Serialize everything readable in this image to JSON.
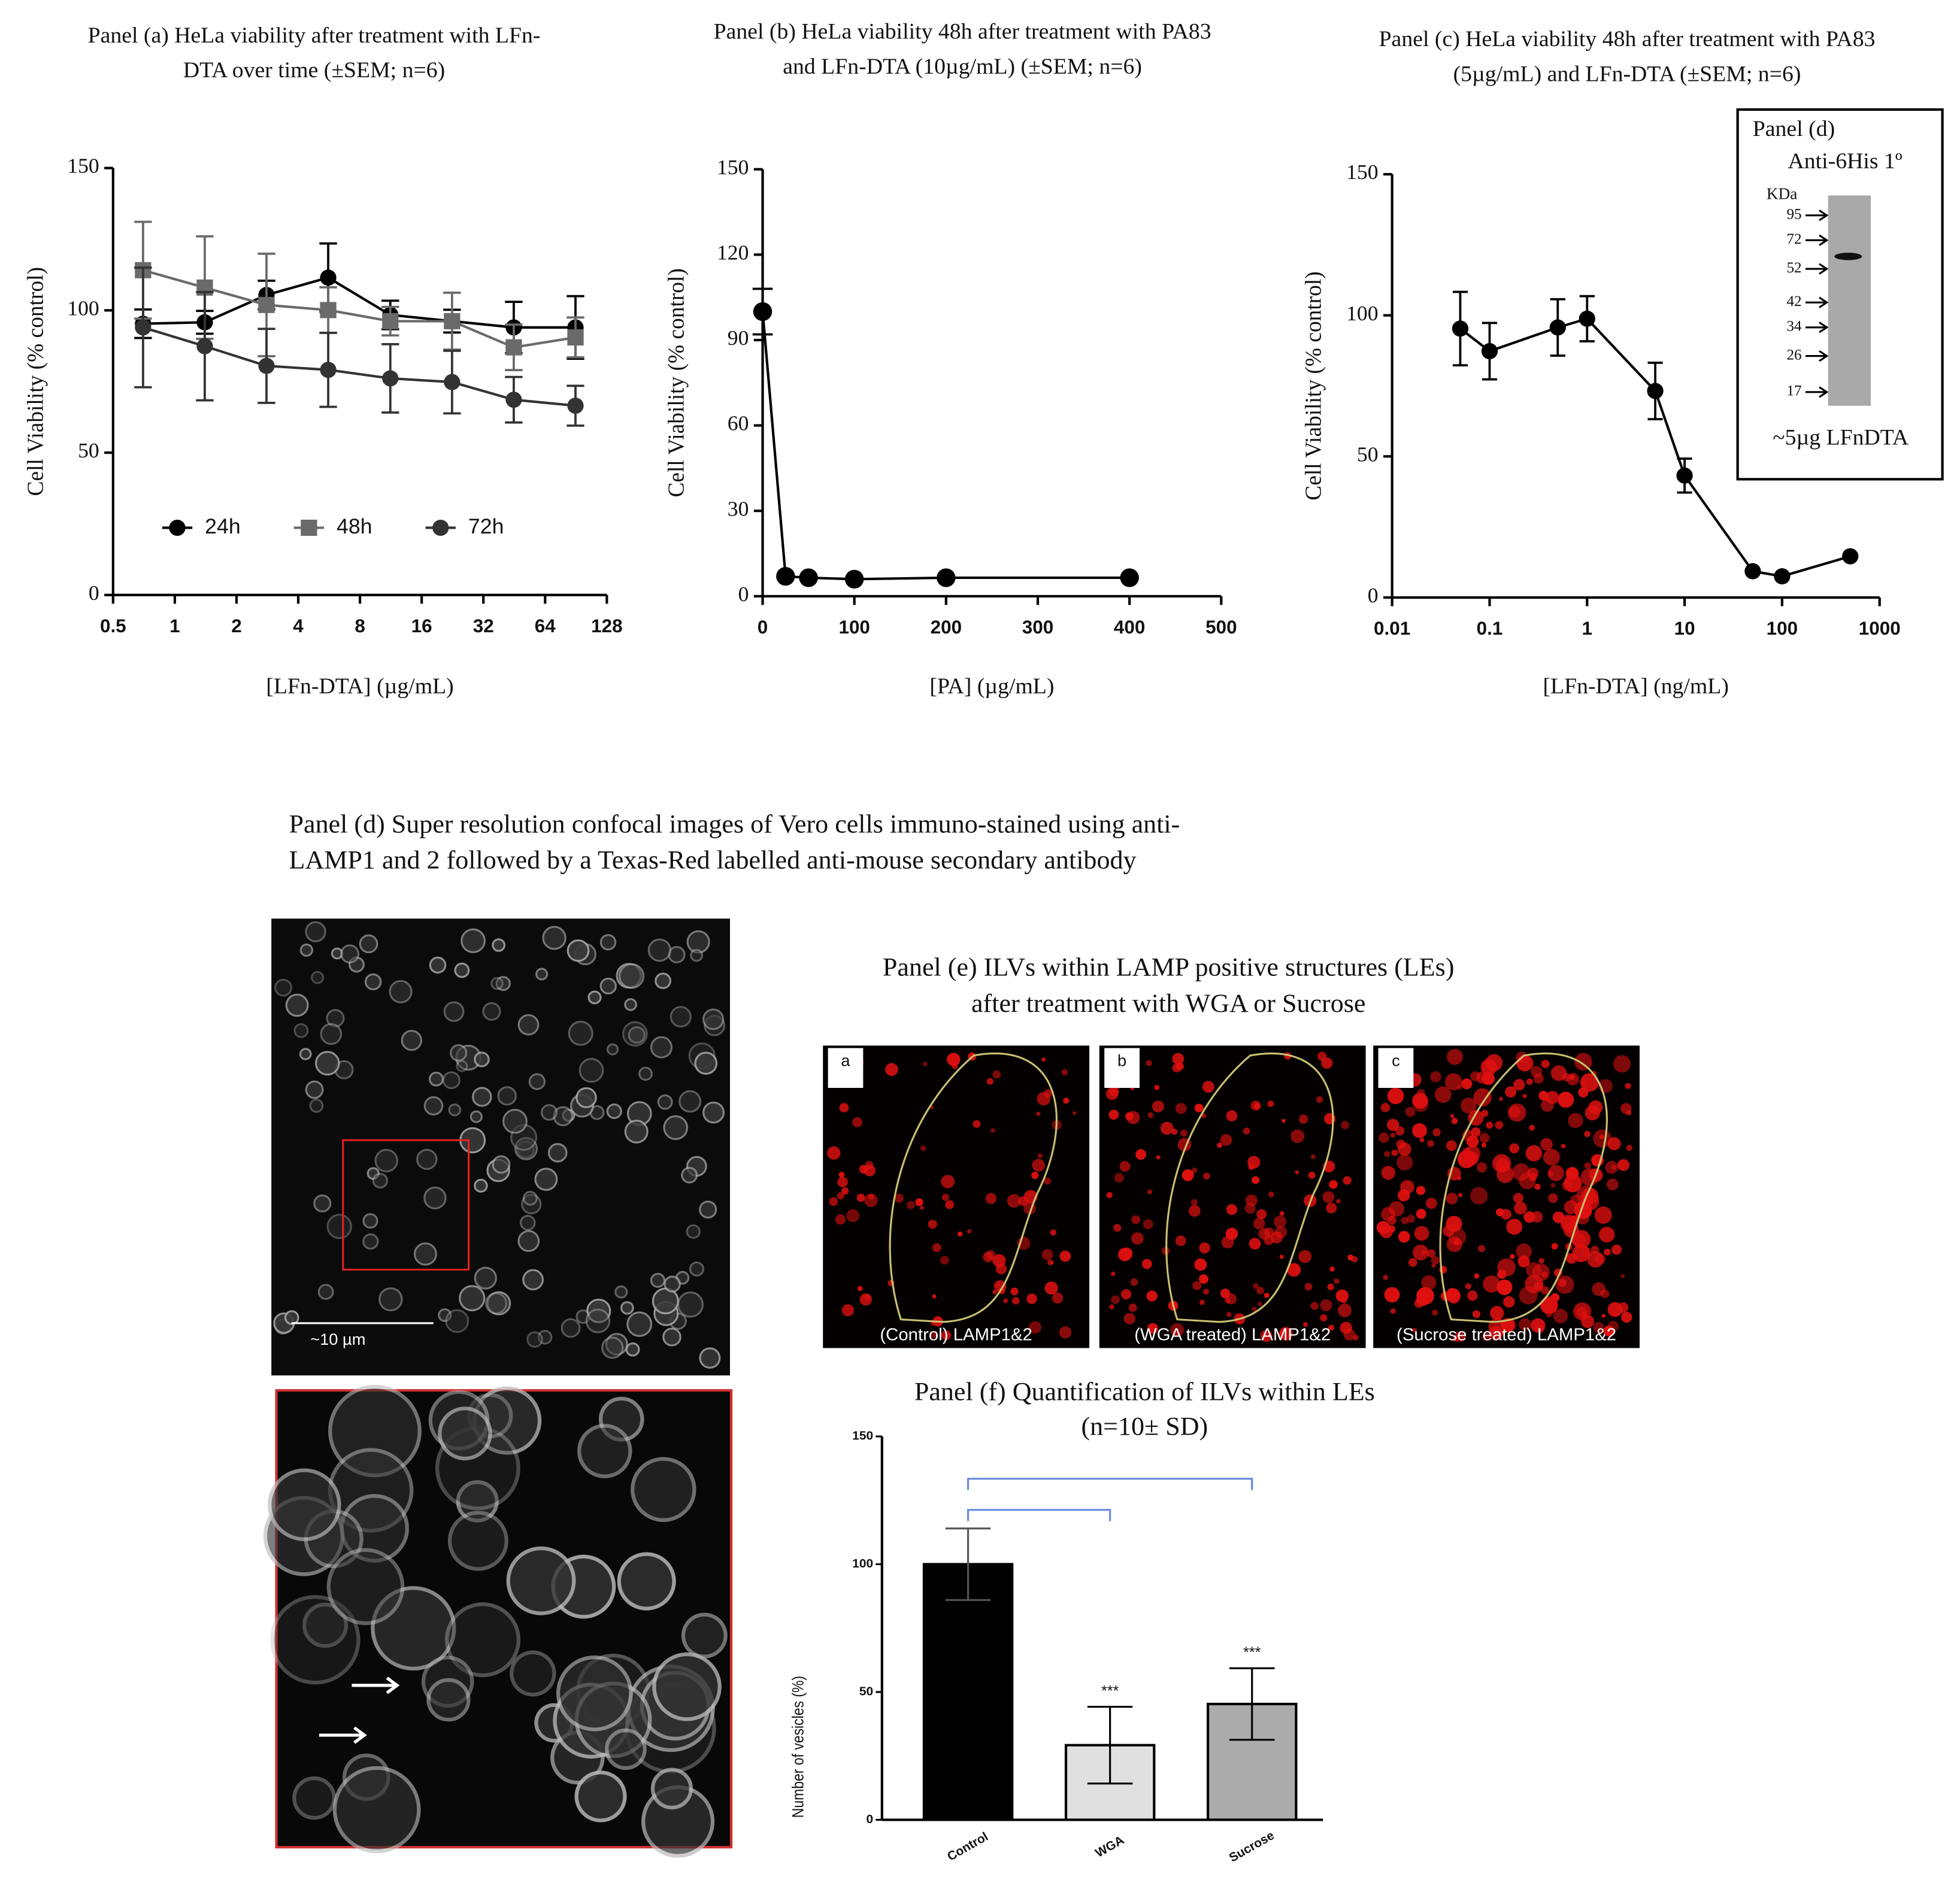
{
  "chart_data": [
    {
      "type": "line",
      "title": [
        "Panel (a) HeLa viability after treatment with LFn-",
        "DTA over time (±SEM; n=6)"
      ],
      "xlabel": "[LFn-DTA] (µg/mL)",
      "ylabel": "Cell Viability  (% control)",
      "x": [
        0.7,
        1.4,
        2.8,
        5.6,
        11.25,
        22.5,
        45,
        90
      ],
      "x_log_base": 2,
      "xlim": [
        0.5,
        128
      ],
      "xticks": [
        0.5,
        1,
        2,
        4,
        8,
        16,
        32,
        64,
        128
      ],
      "ylim": [
        0,
        150
      ],
      "yticks": [
        0,
        50,
        100,
        150
      ],
      "legend": "lower center",
      "series": [
        {
          "name": "24h",
          "color": "#000000",
          "marker": "circle",
          "values": [
            95.3,
            95.8,
            105.4,
            111.5,
            98.4,
            96.2,
            94,
            94
          ],
          "errors": [
            5,
            4,
            5,
            12,
            5,
            4,
            9,
            11
          ]
        },
        {
          "name": "48h",
          "color": "#6a6a6a",
          "marker": "square",
          "values": [
            114.1,
            108,
            101.9,
            100.1,
            96.2,
            96.2,
            87,
            90.5
          ],
          "errors": [
            17,
            18,
            18,
            8,
            5,
            10,
            8,
            7
          ]
        },
        {
          "name": "72h",
          "color": "#333333",
          "marker": "circle",
          "values": [
            94,
            87.4,
            80.5,
            79.1,
            76.1,
            74.8,
            68.6,
            66.5
          ],
          "errors": [
            21,
            19,
            13,
            13,
            12,
            11,
            8,
            7
          ]
        }
      ]
    },
    {
      "type": "line",
      "title": [
        "Panel (b) HeLa viability 48h after treatment with PA83",
        "and LFn-DTA (10µg/mL) (±SEM; n=6)"
      ],
      "xlabel": "[PA] (µg/mL)",
      "ylabel": "Cell Viability  (% control)",
      "x": [
        0,
        25,
        50,
        100,
        200,
        400
      ],
      "xlim": [
        0,
        500
      ],
      "xticks": [
        0,
        100,
        200,
        300,
        400,
        500
      ],
      "ylim": [
        0,
        150
      ],
      "yticks": [
        0,
        30,
        60,
        90,
        120,
        150
      ],
      "series": [
        {
          "name": "PA83",
          "color": "#000000",
          "marker": "circle",
          "values": [
            100,
            7,
            6.5,
            6,
            6.5,
            6.5
          ],
          "errors": [
            8,
            null,
            null,
            null,
            null,
            null
          ]
        }
      ]
    },
    {
      "type": "line",
      "title": [
        "Panel (c) HeLa viability 48h after treatment with PA83",
        "(5µg/mL) and LFn-DTA (±SEM; n=6)"
      ],
      "xlabel": "[LFn-DTA] (ng/mL)",
      "ylabel": "Cell Viability  (% control)",
      "x": [
        0.05,
        0.1,
        0.5,
        1,
        5,
        10,
        50,
        100,
        500
      ],
      "x_log_base": 10,
      "xlim": [
        0.01,
        1000
      ],
      "xticks": [
        0.01,
        0.1,
        1,
        10,
        100,
        1000
      ],
      "ylim": [
        0,
        150
      ],
      "yticks": [
        0,
        50,
        100,
        150
      ],
      "series": [
        {
          "name": "LFn-DTA",
          "color": "#000000",
          "marker": "circle",
          "values": [
            95.3,
            87.3,
            95.7,
            98.8,
            73.2,
            43.2,
            9.3,
            7.5,
            14.6
          ],
          "errors": [
            13,
            10,
            10,
            8,
            10,
            6,
            null,
            null,
            null
          ]
        }
      ]
    },
    {
      "type": "bar",
      "title": [
        "Panel (f) Quantification of ILVs within LEs",
        "(n=10± SD)"
      ],
      "ylabel": "Number of vesicles (%)",
      "categories": [
        "Control",
        "WGA",
        "Sucrose"
      ],
      "values": [
        100,
        29.2,
        45.3
      ],
      "errors": [
        14,
        15,
        14
      ],
      "colors": [
        "#000000",
        "#e0e0e0",
        "#ababab"
      ],
      "significance": [
        null,
        "***",
        "***"
      ],
      "ylim": [
        0,
        150
      ],
      "yticks": [
        0,
        50,
        100,
        150
      ]
    }
  ],
  "blot": {
    "title": "Panel (d)",
    "antibody": "Anti-6His 1º",
    "unit": "KDa",
    "markers": [
      "95",
      "72",
      "52",
      "42",
      "34",
      "26",
      "17"
    ],
    "caption": "~5µg LFnDTA"
  },
  "panel_d": {
    "title": [
      "Panel (d) Super resolution confocal images of Vero cells immuno-stained using anti-",
      "LAMP1 and 2 followed by a Texas-Red labelled anti-mouse secondary antibody"
    ],
    "scale_bar": "~10 µm"
  },
  "panel_e": {
    "title": [
      "Panel (e) ILVs within LAMP positive structures (LEs)",
      "after treatment with WGA or Sucrose"
    ],
    "images": [
      {
        "letter": "a",
        "caption": "(Control) LAMP1&2"
      },
      {
        "letter": "b",
        "caption": "(WGA treated) LAMP1&2"
      },
      {
        "letter": "c",
        "caption": "(Sucrose treated) LAMP1&2"
      }
    ]
  }
}
